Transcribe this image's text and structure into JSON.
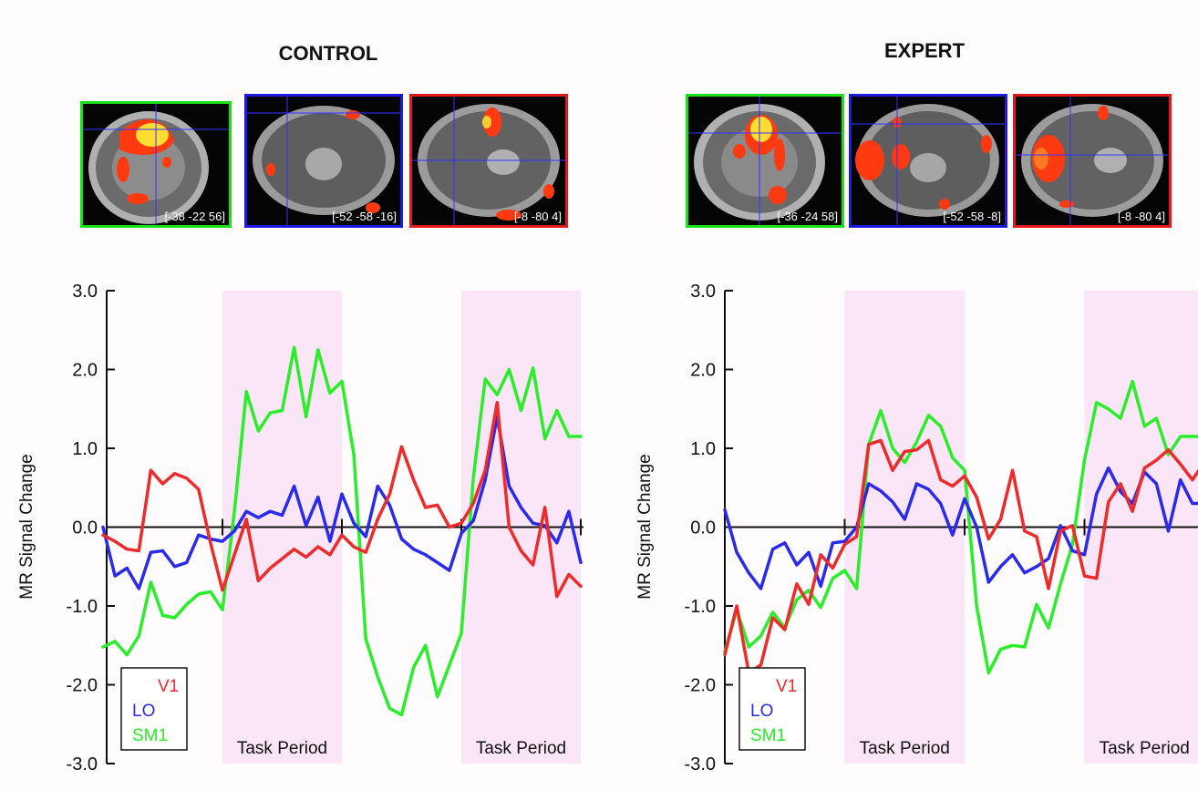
{
  "panels": [
    {
      "title": "CONTROL",
      "scans": [
        {
          "coord": "[-38 -22 56]",
          "border": "#19e019"
        },
        {
          "coord": "[-52 -58 -16]",
          "border": "#1a1ae0"
        },
        {
          "coord": "[-8 -80 4]",
          "border": "#e01a1a"
        }
      ]
    },
    {
      "title": "EXPERT",
      "scans": [
        {
          "coord": "[-36 -24 58]",
          "border": "#19e019"
        },
        {
          "coord": "[-52 -58 -8]",
          "border": "#1a1ae0"
        },
        {
          "coord": "[-8 -80 4]",
          "border": "#e01a1a"
        }
      ]
    }
  ],
  "colors": {
    "V1": "#ee2a2a",
    "LO": "#2a2aee",
    "SM1": "#2aee2a",
    "task_shade": "#fbe6f7"
  },
  "chart_data": [
    {
      "type": "line",
      "ylabel": "MR Signal Change",
      "ylim": [
        -3.0,
        3.0
      ],
      "yticks": [
        "3.0",
        "2.0",
        "1.0",
        "0.0",
        "-1.0",
        "-2.0",
        "-3.0"
      ],
      "x_points": 41,
      "task_periods": [
        [
          10,
          20
        ],
        [
          30,
          40
        ]
      ],
      "task_label": "Task Period",
      "legend": [
        "V1",
        "LO",
        "SM1"
      ],
      "series": [
        {
          "name": "V1",
          "values": [
            -0.1,
            -0.18,
            -0.28,
            -0.3,
            0.72,
            0.55,
            0.68,
            0.62,
            0.48,
            -0.2,
            -0.8,
            -0.35,
            0.1,
            -0.68,
            -0.52,
            -0.4,
            -0.28,
            -0.38,
            -0.25,
            -0.35,
            -0.1,
            -0.25,
            -0.32,
            0.1,
            0.42,
            1.02,
            0.6,
            0.25,
            0.28,
            0.0,
            0.05,
            0.3,
            0.72,
            1.58,
            0.0,
            -0.3,
            -0.48,
            0.25,
            -0.88,
            -0.6,
            -0.75
          ]
        },
        {
          "name": "LO",
          "values": [
            0.0,
            -0.62,
            -0.52,
            -0.78,
            -0.32,
            -0.3,
            -0.5,
            -0.45,
            -0.1,
            -0.15,
            -0.18,
            -0.05,
            0.2,
            0.12,
            0.2,
            0.15,
            0.52,
            0.02,
            0.38,
            -0.18,
            0.42,
            0.05,
            -0.12,
            0.52,
            0.28,
            -0.15,
            -0.28,
            -0.35,
            -0.45,
            -0.55,
            -0.08,
            0.08,
            0.6,
            1.4,
            0.52,
            0.25,
            0.05,
            0.02,
            -0.2,
            0.2,
            -0.45
          ]
        },
        {
          "name": "SM1",
          "values": [
            -1.52,
            -1.45,
            -1.62,
            -1.38,
            -0.7,
            -1.12,
            -1.15,
            -0.98,
            -0.85,
            -0.82,
            -1.05,
            0.2,
            1.72,
            1.22,
            1.45,
            1.48,
            2.28,
            1.4,
            2.25,
            1.7,
            1.85,
            0.92,
            -1.42,
            -1.9,
            -2.3,
            -2.38,
            -1.78,
            -1.5,
            -2.15,
            -1.75,
            -1.35,
            0.62,
            1.88,
            1.68,
            2.0,
            1.48,
            2.02,
            1.12,
            1.48,
            1.15,
            1.15
          ]
        }
      ]
    },
    {
      "type": "line",
      "ylabel": "MR Signal Change",
      "ylim": [
        -3.0,
        3.0
      ],
      "yticks": [
        "3.0",
        "2.0",
        "1.0",
        "0.0",
        "-1.0",
        "-2.0",
        "-3.0"
      ],
      "x_points": 41,
      "task_periods": [
        [
          10,
          20
        ],
        [
          30,
          40
        ]
      ],
      "task_label": "Task Period",
      "legend": [
        "V1",
        "LO",
        "SM1"
      ],
      "series": [
        {
          "name": "V1",
          "values": [
            -1.62,
            -1.0,
            -1.85,
            -1.75,
            -1.15,
            -1.3,
            -0.72,
            -0.98,
            -0.35,
            -0.52,
            -0.22,
            -0.12,
            1.05,
            1.1,
            0.72,
            0.96,
            0.98,
            1.1,
            0.6,
            0.52,
            0.65,
            0.38,
            -0.15,
            0.1,
            0.72,
            -0.05,
            -0.12,
            -0.78,
            -0.05,
            0.02,
            -0.62,
            -0.65,
            0.32,
            0.55,
            0.2,
            0.75,
            0.85,
            0.98,
            0.8,
            0.6,
            0.82
          ]
        },
        {
          "name": "LO",
          "values": [
            0.22,
            -0.32,
            -0.58,
            -0.78,
            -0.28,
            -0.2,
            -0.48,
            -0.32,
            -0.75,
            -0.2,
            -0.18,
            0.0,
            0.55,
            0.46,
            0.32,
            0.1,
            0.55,
            0.48,
            0.3,
            -0.1,
            0.36,
            0.0,
            -0.7,
            -0.5,
            -0.35,
            -0.58,
            -0.5,
            -0.4,
            0.02,
            -0.3,
            -0.35,
            0.42,
            0.75,
            0.45,
            0.3,
            0.7,
            0.55,
            -0.05,
            0.6,
            0.3,
            0.3
          ]
        },
        {
          "name": "SM1",
          "values": [
            -1.58,
            -1.05,
            -1.52,
            -1.38,
            -1.08,
            -1.28,
            -0.92,
            -0.8,
            -1.02,
            -0.65,
            -0.55,
            -0.78,
            1.05,
            1.48,
            1.0,
            0.82,
            1.08,
            1.42,
            1.28,
            0.88,
            0.72,
            -1.0,
            -1.85,
            -1.55,
            -1.5,
            -1.52,
            -0.98,
            -1.28,
            -0.72,
            -0.22,
            0.85,
            1.58,
            1.5,
            1.38,
            1.85,
            1.28,
            1.38,
            0.92,
            1.15,
            1.15,
            1.15
          ]
        }
      ]
    }
  ]
}
